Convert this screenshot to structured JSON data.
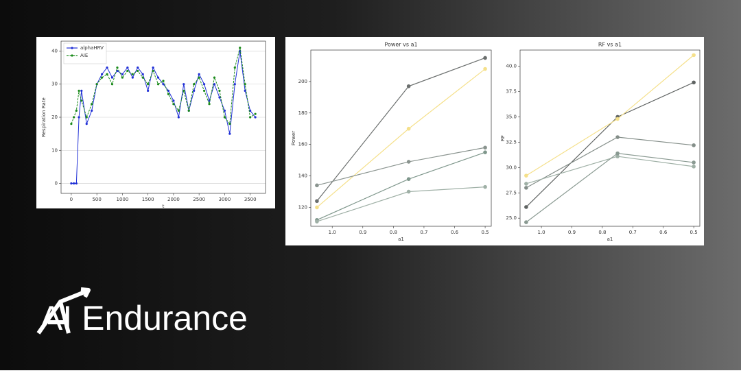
{
  "brand": {
    "name": "AI Endurance"
  },
  "chart_data": [
    {
      "type": "line",
      "xlabel": "t",
      "ylabel": "Respiration Rate",
      "x": [
        0,
        50,
        100,
        150,
        200,
        300,
        400,
        500,
        600,
        700,
        800,
        900,
        1000,
        1100,
        1200,
        1300,
        1400,
        1500,
        1600,
        1700,
        1800,
        1900,
        2000,
        2100,
        2200,
        2300,
        2400,
        2500,
        2600,
        2700,
        2800,
        2900,
        3000,
        3100,
        3200,
        3300,
        3400,
        3500,
        3600
      ],
      "series": [
        {
          "name": "alphaHRV",
          "color": "#1f2fd6",
          "linestyle": "solid",
          "values": [
            0,
            0,
            0,
            20,
            28,
            18,
            22,
            30,
            33,
            35,
            32,
            34,
            33,
            35,
            32,
            35,
            33,
            28,
            35,
            32,
            30,
            28,
            25,
            20,
            30,
            22,
            28,
            33,
            30,
            25,
            30,
            26,
            22,
            15,
            30,
            40,
            28,
            22,
            20
          ]
        },
        {
          "name": "AIE",
          "color": "#1a8a1a",
          "linestyle": "dashed",
          "values": [
            18,
            20,
            22,
            28,
            25,
            20,
            24,
            30,
            32,
            33,
            30,
            35,
            32,
            34,
            33,
            34,
            32,
            30,
            34,
            30,
            31,
            27,
            24,
            22,
            28,
            22,
            30,
            32,
            28,
            24,
            32,
            28,
            20,
            18,
            35,
            41,
            30,
            20,
            21
          ]
        }
      ],
      "xlim": [
        -200,
        3800
      ],
      "xticks": [
        0,
        500,
        1000,
        1500,
        2000,
        2500,
        3000,
        3500
      ],
      "ylim": [
        -3,
        43
      ],
      "yticks": [
        0,
        10,
        20,
        30,
        40
      ],
      "grid": "y",
      "legend": "upper left"
    },
    {
      "type": "line",
      "title": "Power vs a1",
      "xlabel": "a1",
      "ylabel": "Power",
      "x": [
        1.05,
        0.75,
        0.5
      ],
      "series": [
        {
          "color": "#6b6f6e",
          "values": [
            124,
            197,
            215
          ]
        },
        {
          "color": "#f5e08a",
          "values": [
            120,
            170,
            208
          ]
        },
        {
          "color": "#8a948f",
          "values": [
            134,
            149,
            158
          ]
        },
        {
          "color": "#7f978c",
          "values": [
            112,
            138,
            155
          ]
        },
        {
          "color": "#9fb0a6",
          "values": [
            111,
            130,
            133
          ]
        }
      ],
      "xlim": [
        1.07,
        0.48
      ],
      "xticks": [
        {
          "value": 1,
          "label": "1.0"
        },
        0.9,
        0.8,
        0.7,
        0.6,
        0.5
      ],
      "ylim": [
        108,
        220
      ],
      "yticks": [
        120,
        140,
        160,
        180,
        200
      ]
    },
    {
      "type": "line",
      "title": "RF vs a1",
      "xlabel": "a1",
      "ylabel": "RF",
      "x": [
        1.05,
        0.75,
        0.5
      ],
      "series": [
        {
          "color": "#5f6362",
          "values": [
            26.1,
            35.0,
            38.4
          ]
        },
        {
          "color": "#f5e08a",
          "values": [
            29.2,
            34.8,
            41.1
          ]
        },
        {
          "color": "#848e89",
          "values": [
            28.0,
            33.0,
            32.2
          ]
        },
        {
          "color": "#9fb0a6",
          "values": [
            28.4,
            31.1,
            30.1
          ]
        },
        {
          "color": "#8a9a92",
          "values": [
            24.6,
            31.4,
            30.5
          ]
        }
      ],
      "xlim": [
        1.07,
        0.48
      ],
      "xticks": [
        {
          "value": 1,
          "label": "1.0"
        },
        0.9,
        0.8,
        0.7,
        0.6,
        0.5
      ],
      "ylim": [
        24.2,
        41.6
      ],
      "yticks": [
        {
          "value": 25,
          "label": "25.0"
        },
        27.5,
        {
          "value": 30,
          "label": "30.0"
        },
        32.5,
        {
          "value": 35,
          "label": "35.0"
        },
        37.5,
        {
          "value": 40,
          "label": "40.0"
        }
      ]
    }
  ]
}
